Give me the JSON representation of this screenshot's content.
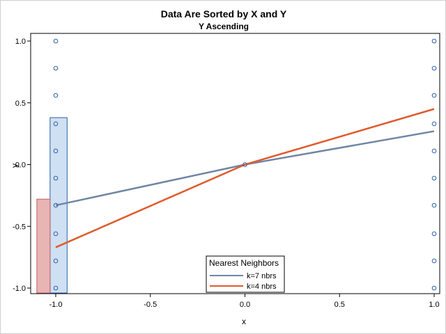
{
  "chart_data": {
    "type": "scatter",
    "title": "Data Are Sorted by X and Y",
    "subtitle": "Y Ascending",
    "xlabel": "x",
    "ylabel": "y",
    "xlim": [
      -1.1,
      1.0
    ],
    "ylim": [
      -1.0,
      1.0
    ],
    "xticks": [
      {
        "value": -1.0,
        "label": "-1.0"
      },
      {
        "value": -0.5,
        "label": "-0.5"
      },
      {
        "value": 0.0,
        "label": "0.0"
      },
      {
        "value": 0.5,
        "label": "0.5"
      },
      {
        "value": 1.0,
        "label": "1.0"
      }
    ],
    "yticks": [
      {
        "value": 1.0,
        "label": "1.0"
      },
      {
        "value": 0.5,
        "label": "0.5"
      },
      {
        "value": 0.0,
        "label": "0.0"
      },
      {
        "value": -0.5,
        "label": "-0.5"
      },
      {
        "value": -1.0,
        "label": "-1.0"
      }
    ],
    "grid": false,
    "points": [
      {
        "x": -1.0,
        "y": -1.0
      },
      {
        "x": -1.0,
        "y": -0.78
      },
      {
        "x": -1.0,
        "y": -0.56
      },
      {
        "x": -1.0,
        "y": -0.33
      },
      {
        "x": -1.0,
        "y": -0.11
      },
      {
        "x": -1.0,
        "y": 0.11
      },
      {
        "x": -1.0,
        "y": 0.33
      },
      {
        "x": -1.0,
        "y": 0.56
      },
      {
        "x": -1.0,
        "y": 0.78
      },
      {
        "x": -1.0,
        "y": 1.0
      },
      {
        "x": 0.0,
        "y": 0.0
      },
      {
        "x": 1.0,
        "y": -1.0
      },
      {
        "x": 1.0,
        "y": -0.78
      },
      {
        "x": 1.0,
        "y": -0.56
      },
      {
        "x": 1.0,
        "y": -0.33
      },
      {
        "x": 1.0,
        "y": -0.11
      },
      {
        "x": 1.0,
        "y": 0.11
      },
      {
        "x": 1.0,
        "y": 0.33
      },
      {
        "x": 1.0,
        "y": 0.56
      },
      {
        "x": 1.0,
        "y": 0.78
      },
      {
        "x": 1.0,
        "y": 1.0
      }
    ],
    "point_color": "#2a5fa8",
    "regions": [
      {
        "x": [
          -1.03,
          -0.94
        ],
        "y": [
          -1.04,
          0.38
        ],
        "fill": "#cfe0f3",
        "stroke": "#2a5fa8"
      },
      {
        "x": [
          -1.1,
          -1.03
        ],
        "y": [
          -1.04,
          -0.28
        ],
        "fill": "#e8b4b4",
        "stroke": "#c06060"
      }
    ],
    "series": [
      {
        "name": "k=7 nbrs",
        "color": "#6f86a6",
        "x": [
          -1.0,
          0.0,
          1.0
        ],
        "y": [
          -0.33,
          0.0,
          0.27
        ]
      },
      {
        "name": "k=4 nbrs",
        "color": "#e05a2b",
        "x": [
          -1.0,
          0.0,
          1.0
        ],
        "y": [
          -0.67,
          0.0,
          0.45
        ]
      }
    ],
    "legend": {
      "title": "Nearest Neighbors",
      "placement": "bottom-center-inside"
    }
  }
}
